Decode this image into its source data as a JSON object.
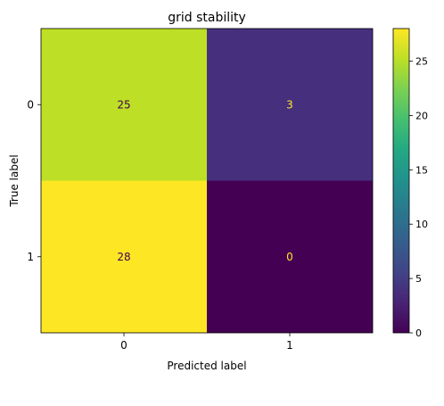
{
  "chart_data": {
    "type": "heatmap",
    "title": "grid stability",
    "xlabel": "Predicted label",
    "ylabel": "True label",
    "x_categories": [
      "0",
      "1"
    ],
    "y_categories": [
      "0",
      "1"
    ],
    "values": [
      [
        25,
        3
      ],
      [
        28,
        0
      ]
    ],
    "colormap": "viridis",
    "colorbar": {
      "min": 0,
      "max": 28,
      "ticks": [
        0,
        5,
        10,
        15,
        20,
        25
      ]
    },
    "cell_colors": [
      [
        "#bddf26",
        "#46307e"
      ],
      [
        "#fde725",
        "#440154"
      ]
    ],
    "text_colors": {
      "on_light": "#440154",
      "on_dark": "#fde725"
    },
    "grid": false
  }
}
